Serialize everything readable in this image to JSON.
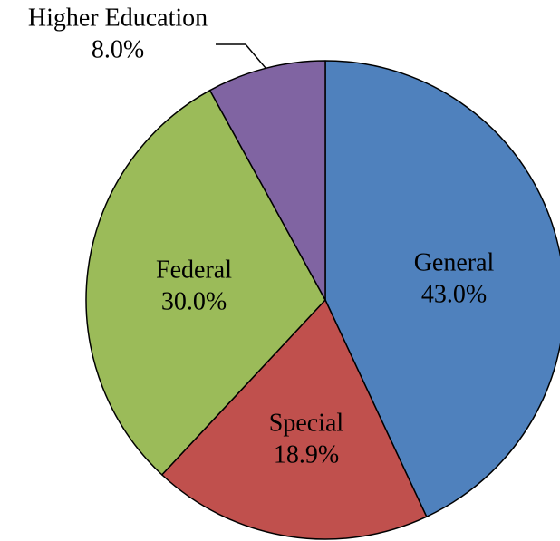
{
  "chart_data": {
    "type": "pie",
    "title": "",
    "legend": "none",
    "slices": [
      {
        "label": "General",
        "value": 43.0,
        "value_label": "43.0%",
        "color": "#4F81BD"
      },
      {
        "label": "Special",
        "value": 18.9,
        "value_label": "18.9%",
        "color": "#C0504D"
      },
      {
        "label": "Federal",
        "value": 30.0,
        "value_label": "30.0%",
        "color": "#9BBB59"
      },
      {
        "label": "Higher Education",
        "value": 8.0,
        "value_label": "8.0%",
        "color": "#8064A2"
      }
    ],
    "start_angle": "12 o'clock",
    "direction": "clockwise"
  }
}
